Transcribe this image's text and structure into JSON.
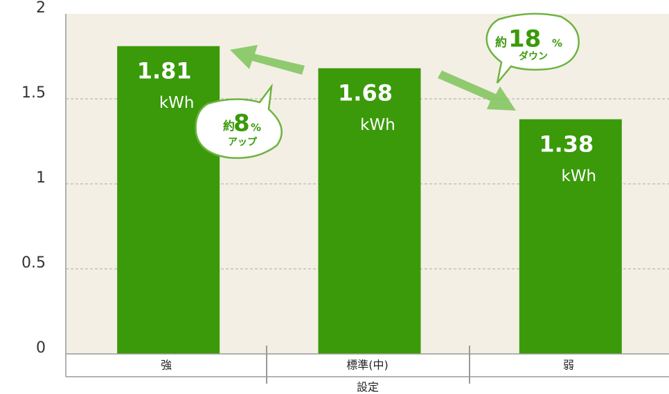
{
  "chart_data": {
    "type": "bar",
    "categories": [
      "強",
      "標準(中)",
      "弱"
    ],
    "values": [
      1.81,
      1.68,
      1.38
    ],
    "unit": "kWh",
    "color": "#3a9a0a",
    "x_label": "設定",
    "ylim": [
      0,
      2
    ],
    "yticks": [
      0,
      0.5,
      1,
      1.5,
      2
    ],
    "grid": true,
    "annotations": [
      {
        "prefix": "約",
        "number": "8",
        "percent": "%",
        "text": "アップ"
      },
      {
        "prefix": "約",
        "number": "18",
        "percent": "%",
        "text": "ダウン"
      }
    ]
  }
}
